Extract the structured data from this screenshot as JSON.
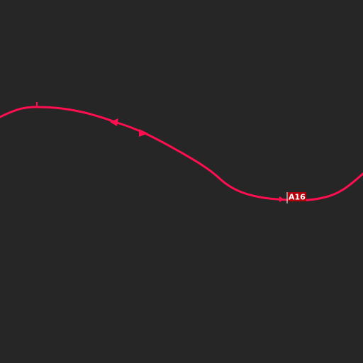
{
  "map": {
    "background_color": "#262626",
    "road": {
      "ref": "A16",
      "line_color": "#ff0f50",
      "label_bg_color": "#b4000a",
      "label_text_color": "#ffffff"
    }
  }
}
